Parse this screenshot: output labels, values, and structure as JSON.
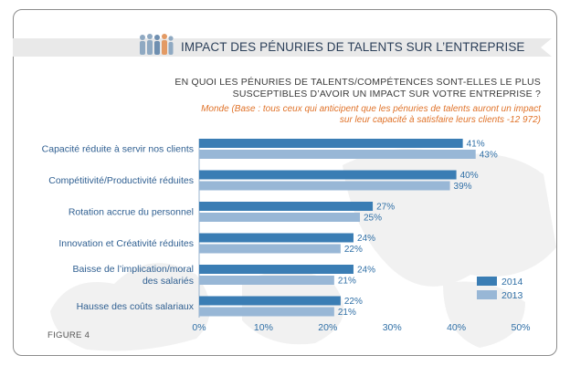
{
  "header": {
    "title": "IMPACT DES PÉNURIES DE TALENTS SUR L’ENTREPRISE"
  },
  "question": {
    "line1": "EN QUOI LES PÉNURIES DE TALENTS/COMPÉTENCES SONT-ELLES LE PLUS",
    "line2": "SUSCEPTIBLES D’AVOIR UN IMPACT SUR VOTRE ENTREPRISE ?"
  },
  "base_note": {
    "line1": "Monde (Base : tous ceux qui anticipent que les pénuries de talents auront un impact",
    "line2": "sur leur capacité à satisfaire leurs clients -12 972)"
  },
  "figure_label": "FIGURE 4",
  "colors": {
    "series_2014": "#3a7db4",
    "series_2013": "#98b7d6",
    "axis_text": "#2f6fa6",
    "category_text": "#2f5f91",
    "title_text": "#2b3f59",
    "note_text": "#e0732a"
  },
  "chart_data": {
    "type": "bar",
    "orientation": "horizontal",
    "categories": [
      [
        "Capacité réduite à servir nos clients"
      ],
      [
        "Compétitivité/Productivité réduites"
      ],
      [
        "Rotation accrue du personnel"
      ],
      [
        "Innovation et Créativité réduites"
      ],
      [
        "Baisse de l’implication/moral",
        "des salariés"
      ],
      [
        "Hausse des coûts salariaux"
      ]
    ],
    "series": [
      {
        "name": "2014",
        "values": [
          41,
          40,
          27,
          24,
          24,
          22
        ]
      },
      {
        "name": "2013",
        "values": [
          43,
          39,
          25,
          22,
          21,
          21
        ]
      }
    ],
    "value_labels": [
      [
        "41%",
        "40%",
        "27%",
        "24%",
        "24%",
        "22%"
      ],
      [
        "43%",
        "39%",
        "25%",
        "22%",
        "21%",
        "21%"
      ]
    ],
    "xlim": [
      0,
      50
    ],
    "xticks": [
      0,
      10,
      20,
      30,
      40,
      50
    ],
    "xtick_labels": [
      "0%",
      "10%",
      "20%",
      "30%",
      "40%",
      "50%"
    ],
    "legend_position": "bottom-right",
    "grid": false
  }
}
